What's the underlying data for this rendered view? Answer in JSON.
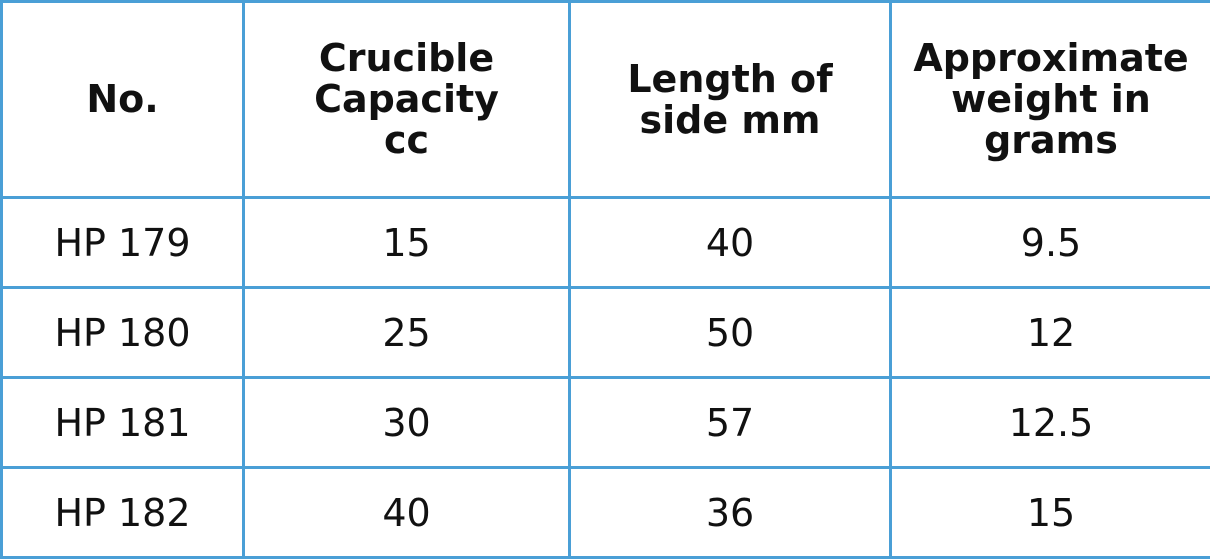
{
  "table": {
    "headers": [
      [
        "No."
      ],
      [
        "Crucible",
        "Capacity",
        "cc"
      ],
      [
        "Length of",
        "side mm"
      ],
      [
        "Approximate",
        "weight in",
        "grams"
      ]
    ],
    "rows": [
      [
        "HP 179",
        "15",
        "40",
        "9.5"
      ],
      [
        "HP 180",
        "25",
        "50",
        "12"
      ],
      [
        "HP 181",
        "30",
        "57",
        "12.5"
      ],
      [
        "HP 182",
        "40",
        "36",
        "15"
      ]
    ]
  },
  "colors": {
    "border": "#4a9fd6",
    "text": "#111111",
    "background": "#ffffff"
  }
}
